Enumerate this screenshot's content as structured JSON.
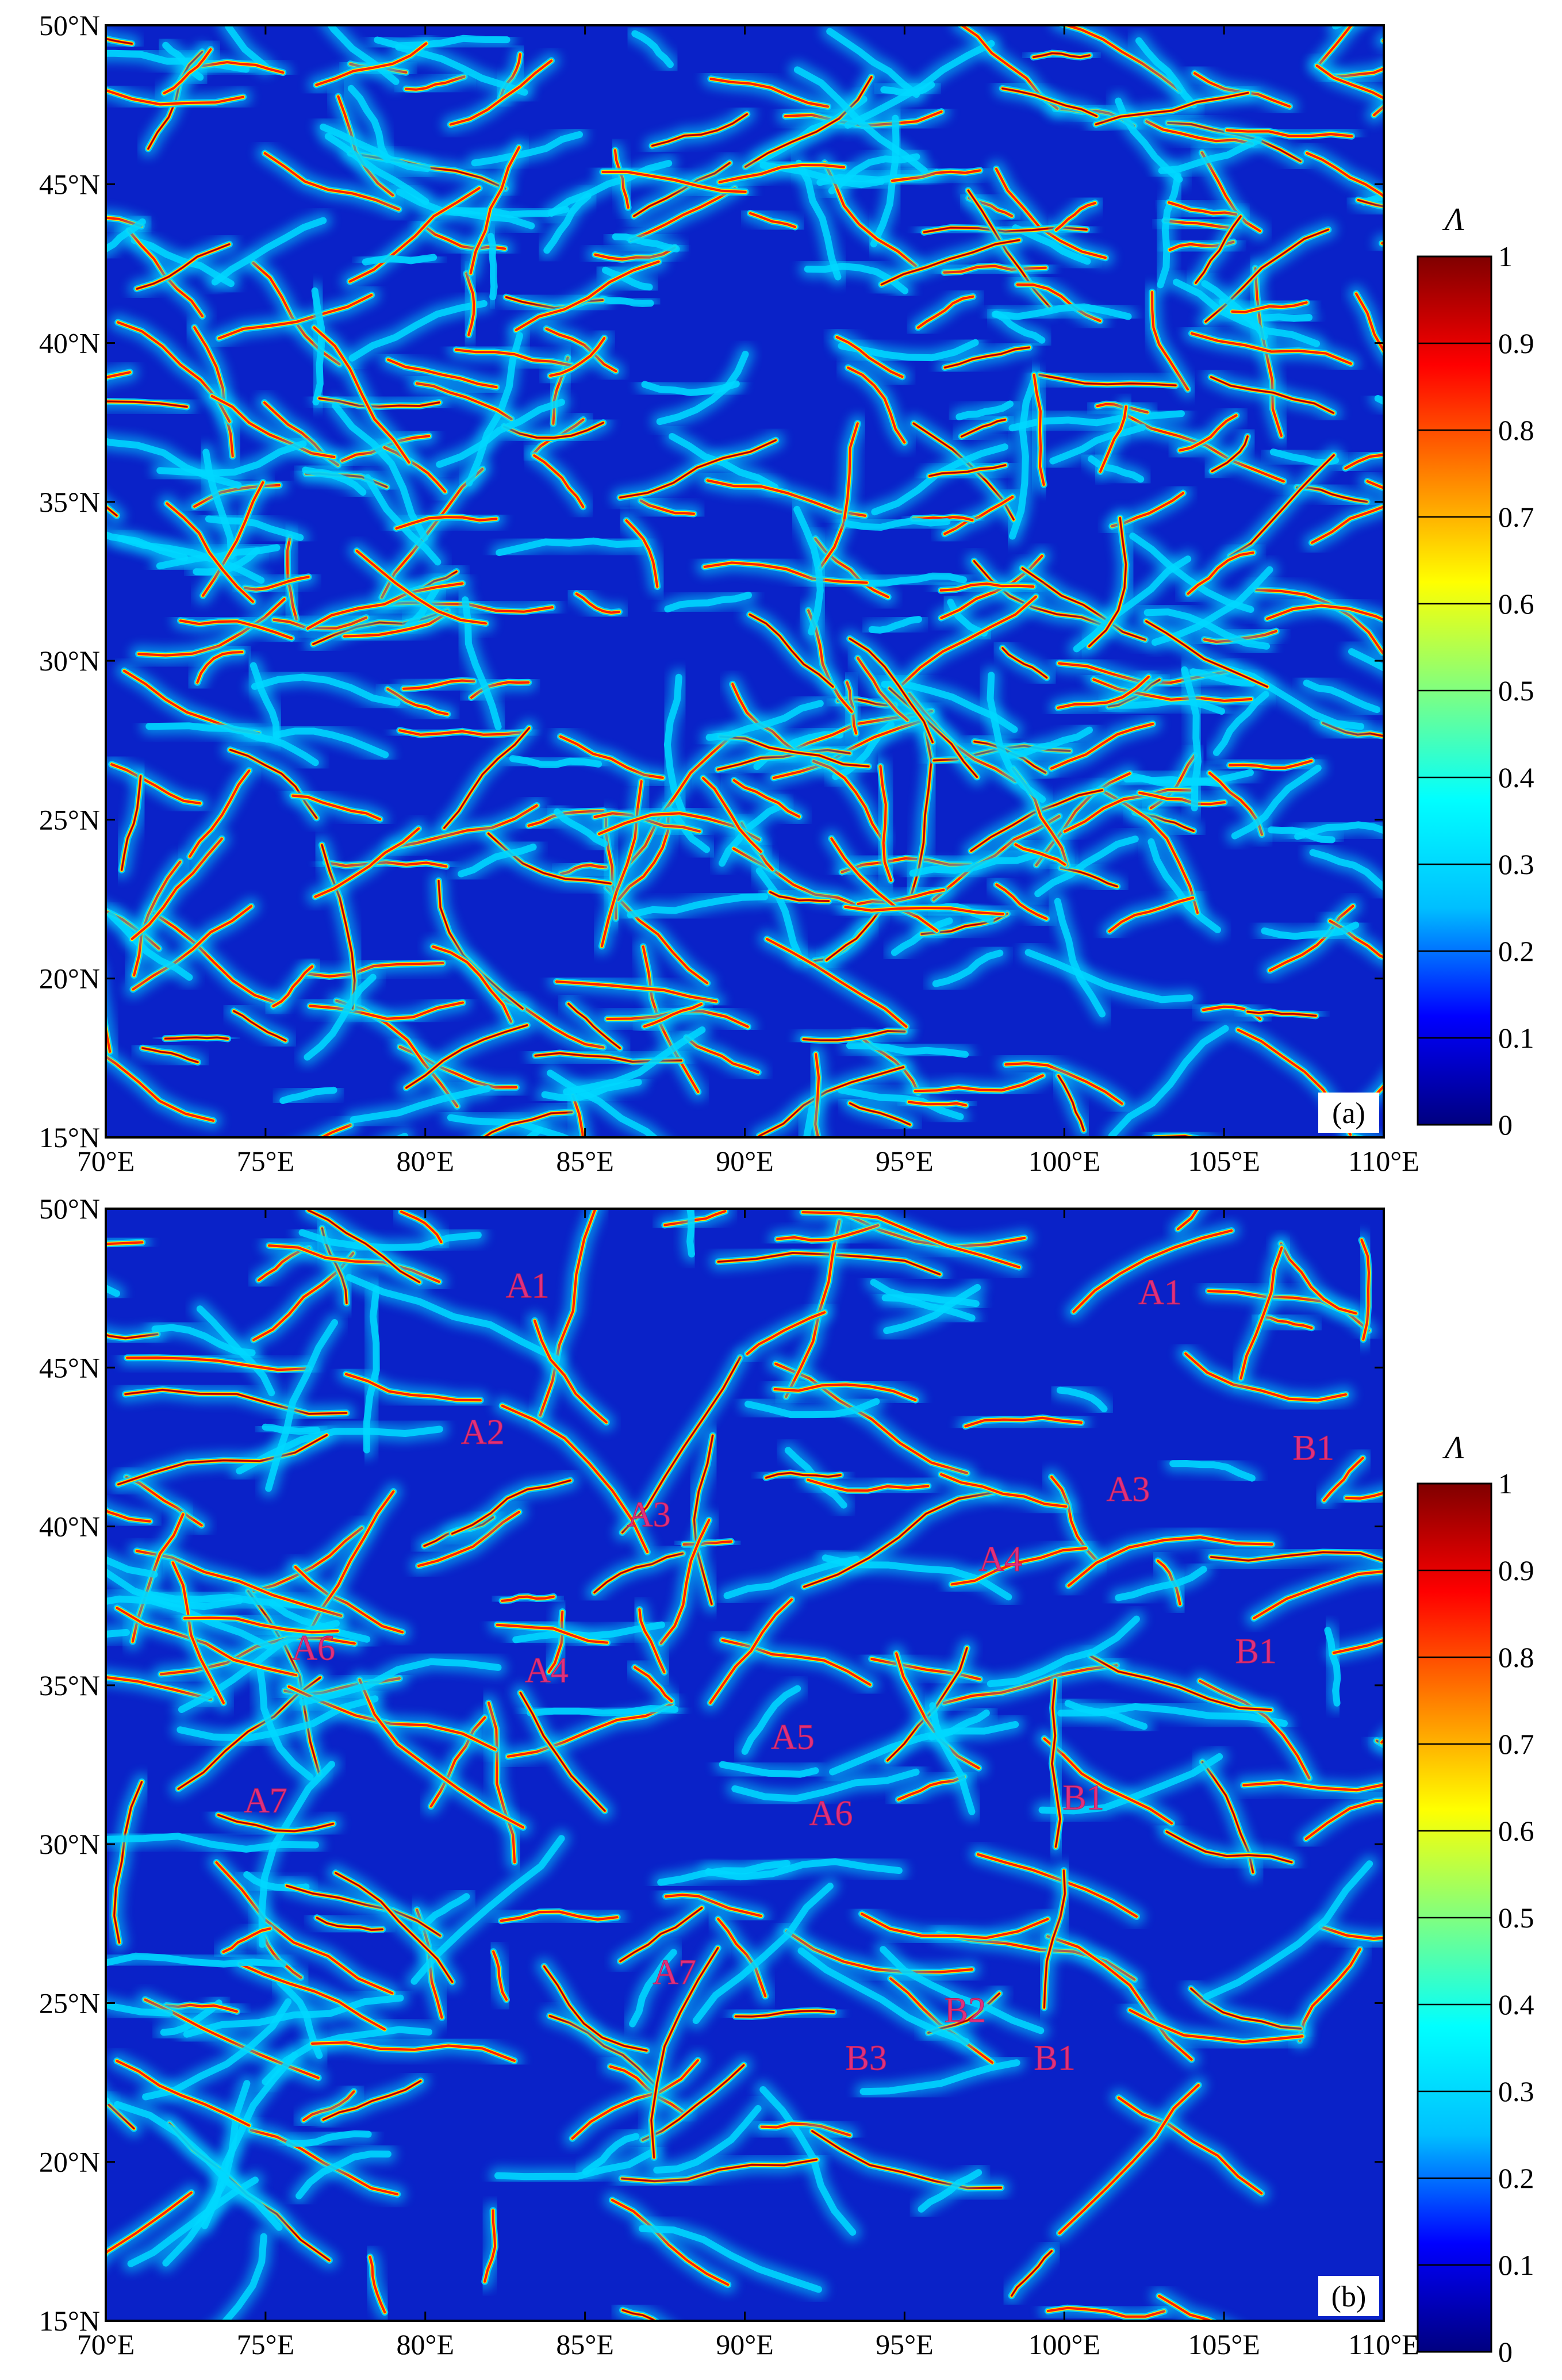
{
  "figure": {
    "panels": [
      {
        "id": "a",
        "tag": "(a)",
        "lon_range": [
          70,
          110
        ],
        "lat_range": [
          15,
          50
        ],
        "annotations": []
      },
      {
        "id": "b",
        "tag": "(b)",
        "lon_range": [
          70,
          110
        ],
        "lat_range": [
          15,
          50
        ],
        "annotations": [
          {
            "text": "A1",
            "lon": 83.2,
            "lat": 47.2
          },
          {
            "text": "A1",
            "lon": 103.0,
            "lat": 47.0
          },
          {
            "text": "A2",
            "lon": 81.8,
            "lat": 42.6
          },
          {
            "text": "A3",
            "lon": 87.0,
            "lat": 40.0
          },
          {
            "text": "A3",
            "lon": 102.0,
            "lat": 40.8
          },
          {
            "text": "A4",
            "lon": 98.0,
            "lat": 38.6
          },
          {
            "text": "A4",
            "lon": 83.8,
            "lat": 35.1
          },
          {
            "text": "A5",
            "lon": 91.5,
            "lat": 33.0
          },
          {
            "text": "A6",
            "lon": 76.5,
            "lat": 35.8
          },
          {
            "text": "A6",
            "lon": 92.7,
            "lat": 30.6
          },
          {
            "text": "A7",
            "lon": 75.0,
            "lat": 31.0
          },
          {
            "text": "A7",
            "lon": 87.8,
            "lat": 25.6
          },
          {
            "text": "B1",
            "lon": 107.8,
            "lat": 42.1
          },
          {
            "text": "B1",
            "lon": 106.0,
            "lat": 35.7
          },
          {
            "text": "B1",
            "lon": 100.6,
            "lat": 31.1
          },
          {
            "text": "B1",
            "lon": 99.7,
            "lat": 22.9
          },
          {
            "text": "B2",
            "lon": 96.9,
            "lat": 24.4
          },
          {
            "text": "B3",
            "lon": 93.8,
            "lat": 22.9
          }
        ]
      }
    ],
    "x_ticks": [
      "70°E",
      "75°E",
      "80°E",
      "85°E",
      "90°E",
      "95°E",
      "100°E",
      "105°E",
      "110°E"
    ],
    "y_ticks": [
      "15°N",
      "20°N",
      "25°N",
      "30°N",
      "35°N",
      "40°N",
      "45°N",
      "50°N"
    ],
    "colorbar": {
      "title": "Λ",
      "range": [
        0,
        1
      ],
      "ticks": [
        "0",
        "0.1",
        "0.2",
        "0.3",
        "0.4",
        "0.5",
        "0.6",
        "0.7",
        "0.8",
        "0.9",
        "1"
      ],
      "colormap": [
        "#000080",
        "#0000ff",
        "#00bfff",
        "#00ffff",
        "#80ff80",
        "#ffff00",
        "#ff8000",
        "#ff0000",
        "#800000"
      ]
    },
    "field": {
      "background": "#0a22c8",
      "ridge_colors": [
        "#00d8ff",
        "#ffe000",
        "#ff2000",
        "#a00000"
      ]
    }
  }
}
